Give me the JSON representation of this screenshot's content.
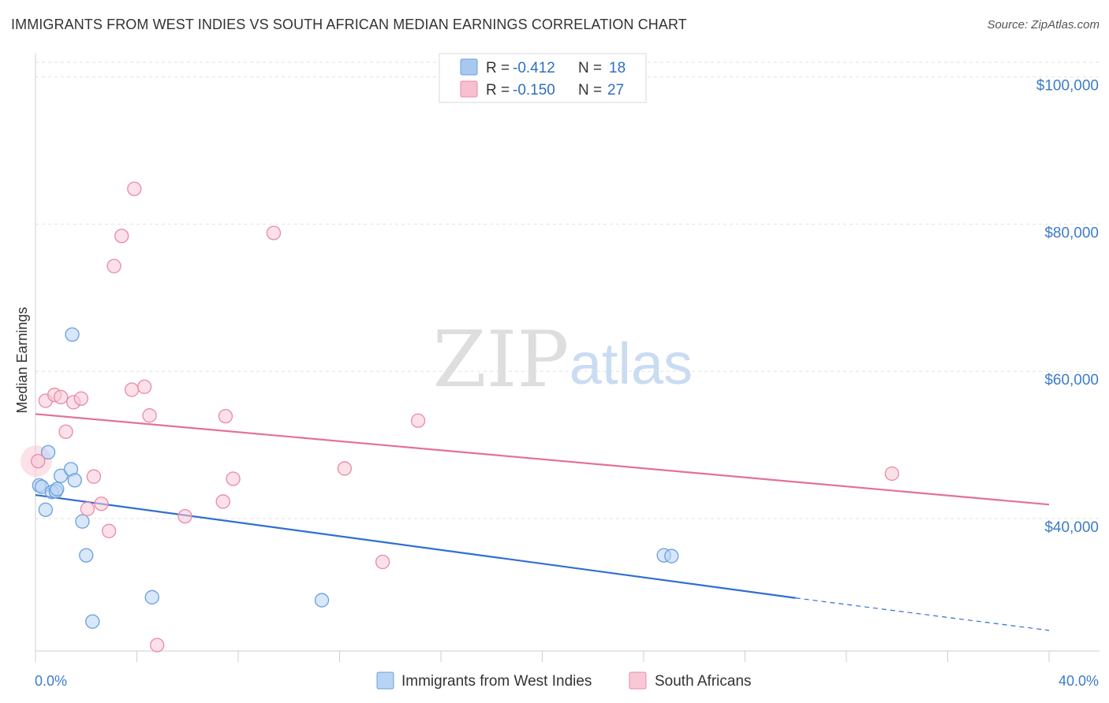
{
  "title": "IMMIGRANTS FROM WEST INDIES VS SOUTH AFRICAN MEDIAN EARNINGS CORRELATION CHART",
  "source": "Source: ZipAtlas.com",
  "watermark": {
    "zip": "ZIP",
    "atlas": "atlas"
  },
  "legend": {
    "rows": [
      {
        "r_label": "R = ",
        "r_value": "-0.412",
        "n_label": "N = ",
        "n_value": "18",
        "color": "#a8c8f0",
        "stroke": "#6a9fde"
      },
      {
        "r_label": "R = ",
        "r_value": "-0.150",
        "n_label": "N = ",
        "n_value": "27",
        "color": "#f8bfd0",
        "stroke": "#e88aa8"
      }
    ]
  },
  "bottom_legend": [
    {
      "label": "Immigrants from West Indies",
      "color": "#b8d4f4",
      "stroke": "#6a9fde"
    },
    {
      "label": "South Africans",
      "color": "#f9c8d6",
      "stroke": "#e88aa8"
    }
  ],
  "chart_data": {
    "type": "scatter",
    "title": "IMMIGRANTS FROM WEST INDIES VS SOUTH AFRICAN MEDIAN EARNINGS CORRELATION CHART",
    "xlabel": "",
    "ylabel": "Median Earnings",
    "xlim": [
      0,
      40
    ],
    "ylim": [
      22000,
      102000
    ],
    "x_tick_labels": [
      {
        "value": 0,
        "label": "0.0%"
      },
      {
        "value": 40,
        "label": "40.0%"
      }
    ],
    "y_ticks": [
      {
        "value": 40000,
        "label": "$40,000"
      },
      {
        "value": 60000,
        "label": "$60,000"
      },
      {
        "value": 80000,
        "label": "$80,000"
      },
      {
        "value": 100000,
        "label": "$100,000"
      }
    ],
    "grid": true,
    "series": [
      {
        "name": "Immigrants from West Indies",
        "color": "#6a9fde",
        "fill": "#b8d4f4",
        "trend": {
          "x0": 0,
          "y0": 43200,
          "x1": 30,
          "y1": 29200,
          "dash_to_x": 40,
          "dash_to_y": 24800,
          "color": "#2f6fd0"
        },
        "points": [
          {
            "x": 0.15,
            "y": 44500
          },
          {
            "x": 0.25,
            "y": 44300
          },
          {
            "x": 0.4,
            "y": 41200
          },
          {
            "x": 0.5,
            "y": 49000
          },
          {
            "x": 0.65,
            "y": 43600
          },
          {
            "x": 0.8,
            "y": 43700
          },
          {
            "x": 0.85,
            "y": 44000
          },
          {
            "x": 1.0,
            "y": 45800
          },
          {
            "x": 1.4,
            "y": 46700
          },
          {
            "x": 1.45,
            "y": 65000
          },
          {
            "x": 1.55,
            "y": 45200
          },
          {
            "x": 1.85,
            "y": 39600
          },
          {
            "x": 2.0,
            "y": 35000
          },
          {
            "x": 2.25,
            "y": 26000
          },
          {
            "x": 4.6,
            "y": 29300
          },
          {
            "x": 11.3,
            "y": 28900
          },
          {
            "x": 24.8,
            "y": 35000
          },
          {
            "x": 25.1,
            "y": 34900
          }
        ]
      },
      {
        "name": "South Africans",
        "color": "#e88aa8",
        "fill": "#f9c8d6",
        "trend": {
          "x0": 0,
          "y0": 54200,
          "x1": 40,
          "y1": 41900,
          "color": "#e4709a"
        },
        "points": [
          {
            "x": 0.1,
            "y": 47800
          },
          {
            "x": 0.4,
            "y": 56000
          },
          {
            "x": 0.75,
            "y": 56800
          },
          {
            "x": 1.0,
            "y": 56500
          },
          {
            "x": 1.2,
            "y": 51800
          },
          {
            "x": 1.5,
            "y": 55800
          },
          {
            "x": 1.8,
            "y": 56300
          },
          {
            "x": 2.3,
            "y": 45700
          },
          {
            "x": 2.05,
            "y": 41300
          },
          {
            "x": 2.6,
            "y": 42000
          },
          {
            "x": 2.9,
            "y": 38300
          },
          {
            "x": 3.1,
            "y": 74300
          },
          {
            "x": 3.4,
            "y": 78400
          },
          {
            "x": 3.8,
            "y": 57500
          },
          {
            "x": 3.9,
            "y": 84800
          },
          {
            "x": 4.3,
            "y": 57900
          },
          {
            "x": 4.5,
            "y": 54000
          },
          {
            "x": 4.8,
            "y": 22800
          },
          {
            "x": 5.9,
            "y": 40300
          },
          {
            "x": 7.4,
            "y": 42300
          },
          {
            "x": 7.5,
            "y": 53900
          },
          {
            "x": 7.8,
            "y": 45400
          },
          {
            "x": 9.4,
            "y": 78800
          },
          {
            "x": 12.2,
            "y": 46800
          },
          {
            "x": 13.7,
            "y": 34100
          },
          {
            "x": 15.1,
            "y": 53300
          },
          {
            "x": 33.8,
            "y": 46100
          }
        ]
      }
    ]
  }
}
